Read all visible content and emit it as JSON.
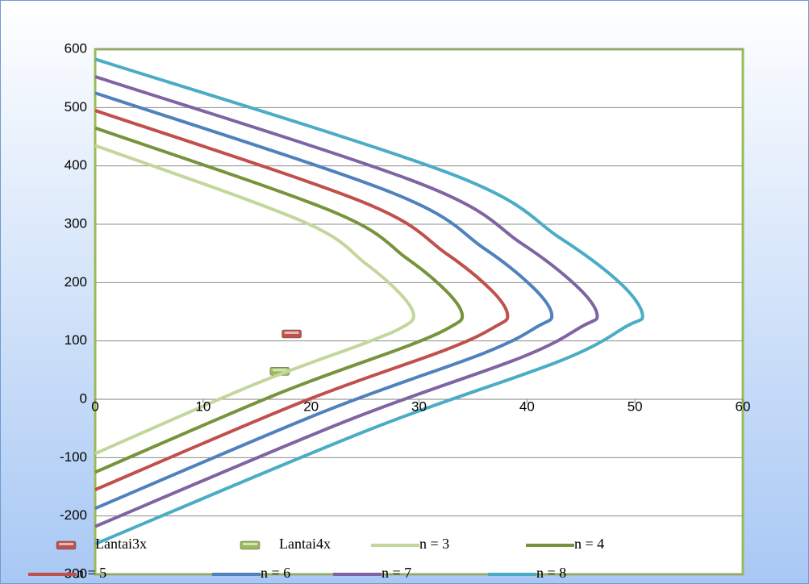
{
  "chart_data": {
    "type": "scatter-line",
    "xlim": [
      0,
      60
    ],
    "xticks": [
      0,
      10,
      20,
      30,
      40,
      50,
      60
    ],
    "ylim": [
      -300,
      600
    ],
    "yticks": [
      -300,
      -200,
      -100,
      0,
      100,
      200,
      300,
      400,
      500,
      600
    ],
    "grid": true,
    "legend": "bottom",
    "series": [
      {
        "name": "Lantai3x",
        "color": "#c0504d",
        "marker": true,
        "line": false,
        "x": [
          18.2
        ],
        "values": [
          112
        ]
      },
      {
        "name": "Lantai4x",
        "color": "#9bbb59",
        "marker": true,
        "line": false,
        "x": [
          17.1
        ],
        "values": [
          48
        ]
      },
      {
        "name": "n = 3",
        "color": "#c3d69b",
        "marker": false,
        "line": true,
        "x": [
          0,
          19.2,
          25.1,
          28.3,
          29.5,
          28.6,
          25.1,
          14.8,
          0
        ],
        "values": [
          435,
          305,
          232,
          180,
          145,
          125,
          97,
          26,
          -93
        ]
      },
      {
        "name": "n = 4",
        "color": "#77933c",
        "marker": false,
        "line": true,
        "x": [
          0,
          22.1,
          28.9,
          32.6,
          34,
          33,
          28.9,
          17,
          0
        ],
        "values": [
          465,
          321,
          241,
          184,
          145,
          125,
          91,
          10,
          -125
        ]
      },
      {
        "name": "n = 5",
        "color": "#c0504d",
        "marker": false,
        "line": true,
        "x": [
          0,
          24.8,
          32.5,
          36.7,
          38.2,
          37.1,
          32.5,
          19.1,
          0
        ],
        "values": [
          495,
          338,
          250,
          187,
          145,
          125,
          85,
          -5,
          -155
        ]
      },
      {
        "name": "n = 6",
        "color": "#4f81bd",
        "marker": false,
        "line": true,
        "x": [
          0,
          27.5,
          36,
          40.6,
          42.3,
          41,
          36,
          21.2,
          0
        ],
        "values": [
          525,
          354,
          259,
          191,
          145,
          125,
          79,
          -21,
          -187
        ]
      },
      {
        "name": "n = 7",
        "color": "#8064a2",
        "marker": false,
        "line": true,
        "x": [
          0,
          30.2,
          39.5,
          44.6,
          46.5,
          45.1,
          39.5,
          23.3,
          0
        ],
        "values": [
          553,
          369,
          267,
          194,
          145,
          125,
          72,
          -37,
          -218
        ]
      },
      {
        "name": "n = 8",
        "color": "#4bacc6",
        "marker": false,
        "line": true,
        "x": [
          0,
          33,
          43.1,
          48.7,
          50.7,
          49.2,
          43.1,
          25.4,
          0
        ],
        "values": [
          583,
          386,
          276,
          198,
          145,
          125,
          66,
          -52,
          -248
        ]
      }
    ]
  }
}
